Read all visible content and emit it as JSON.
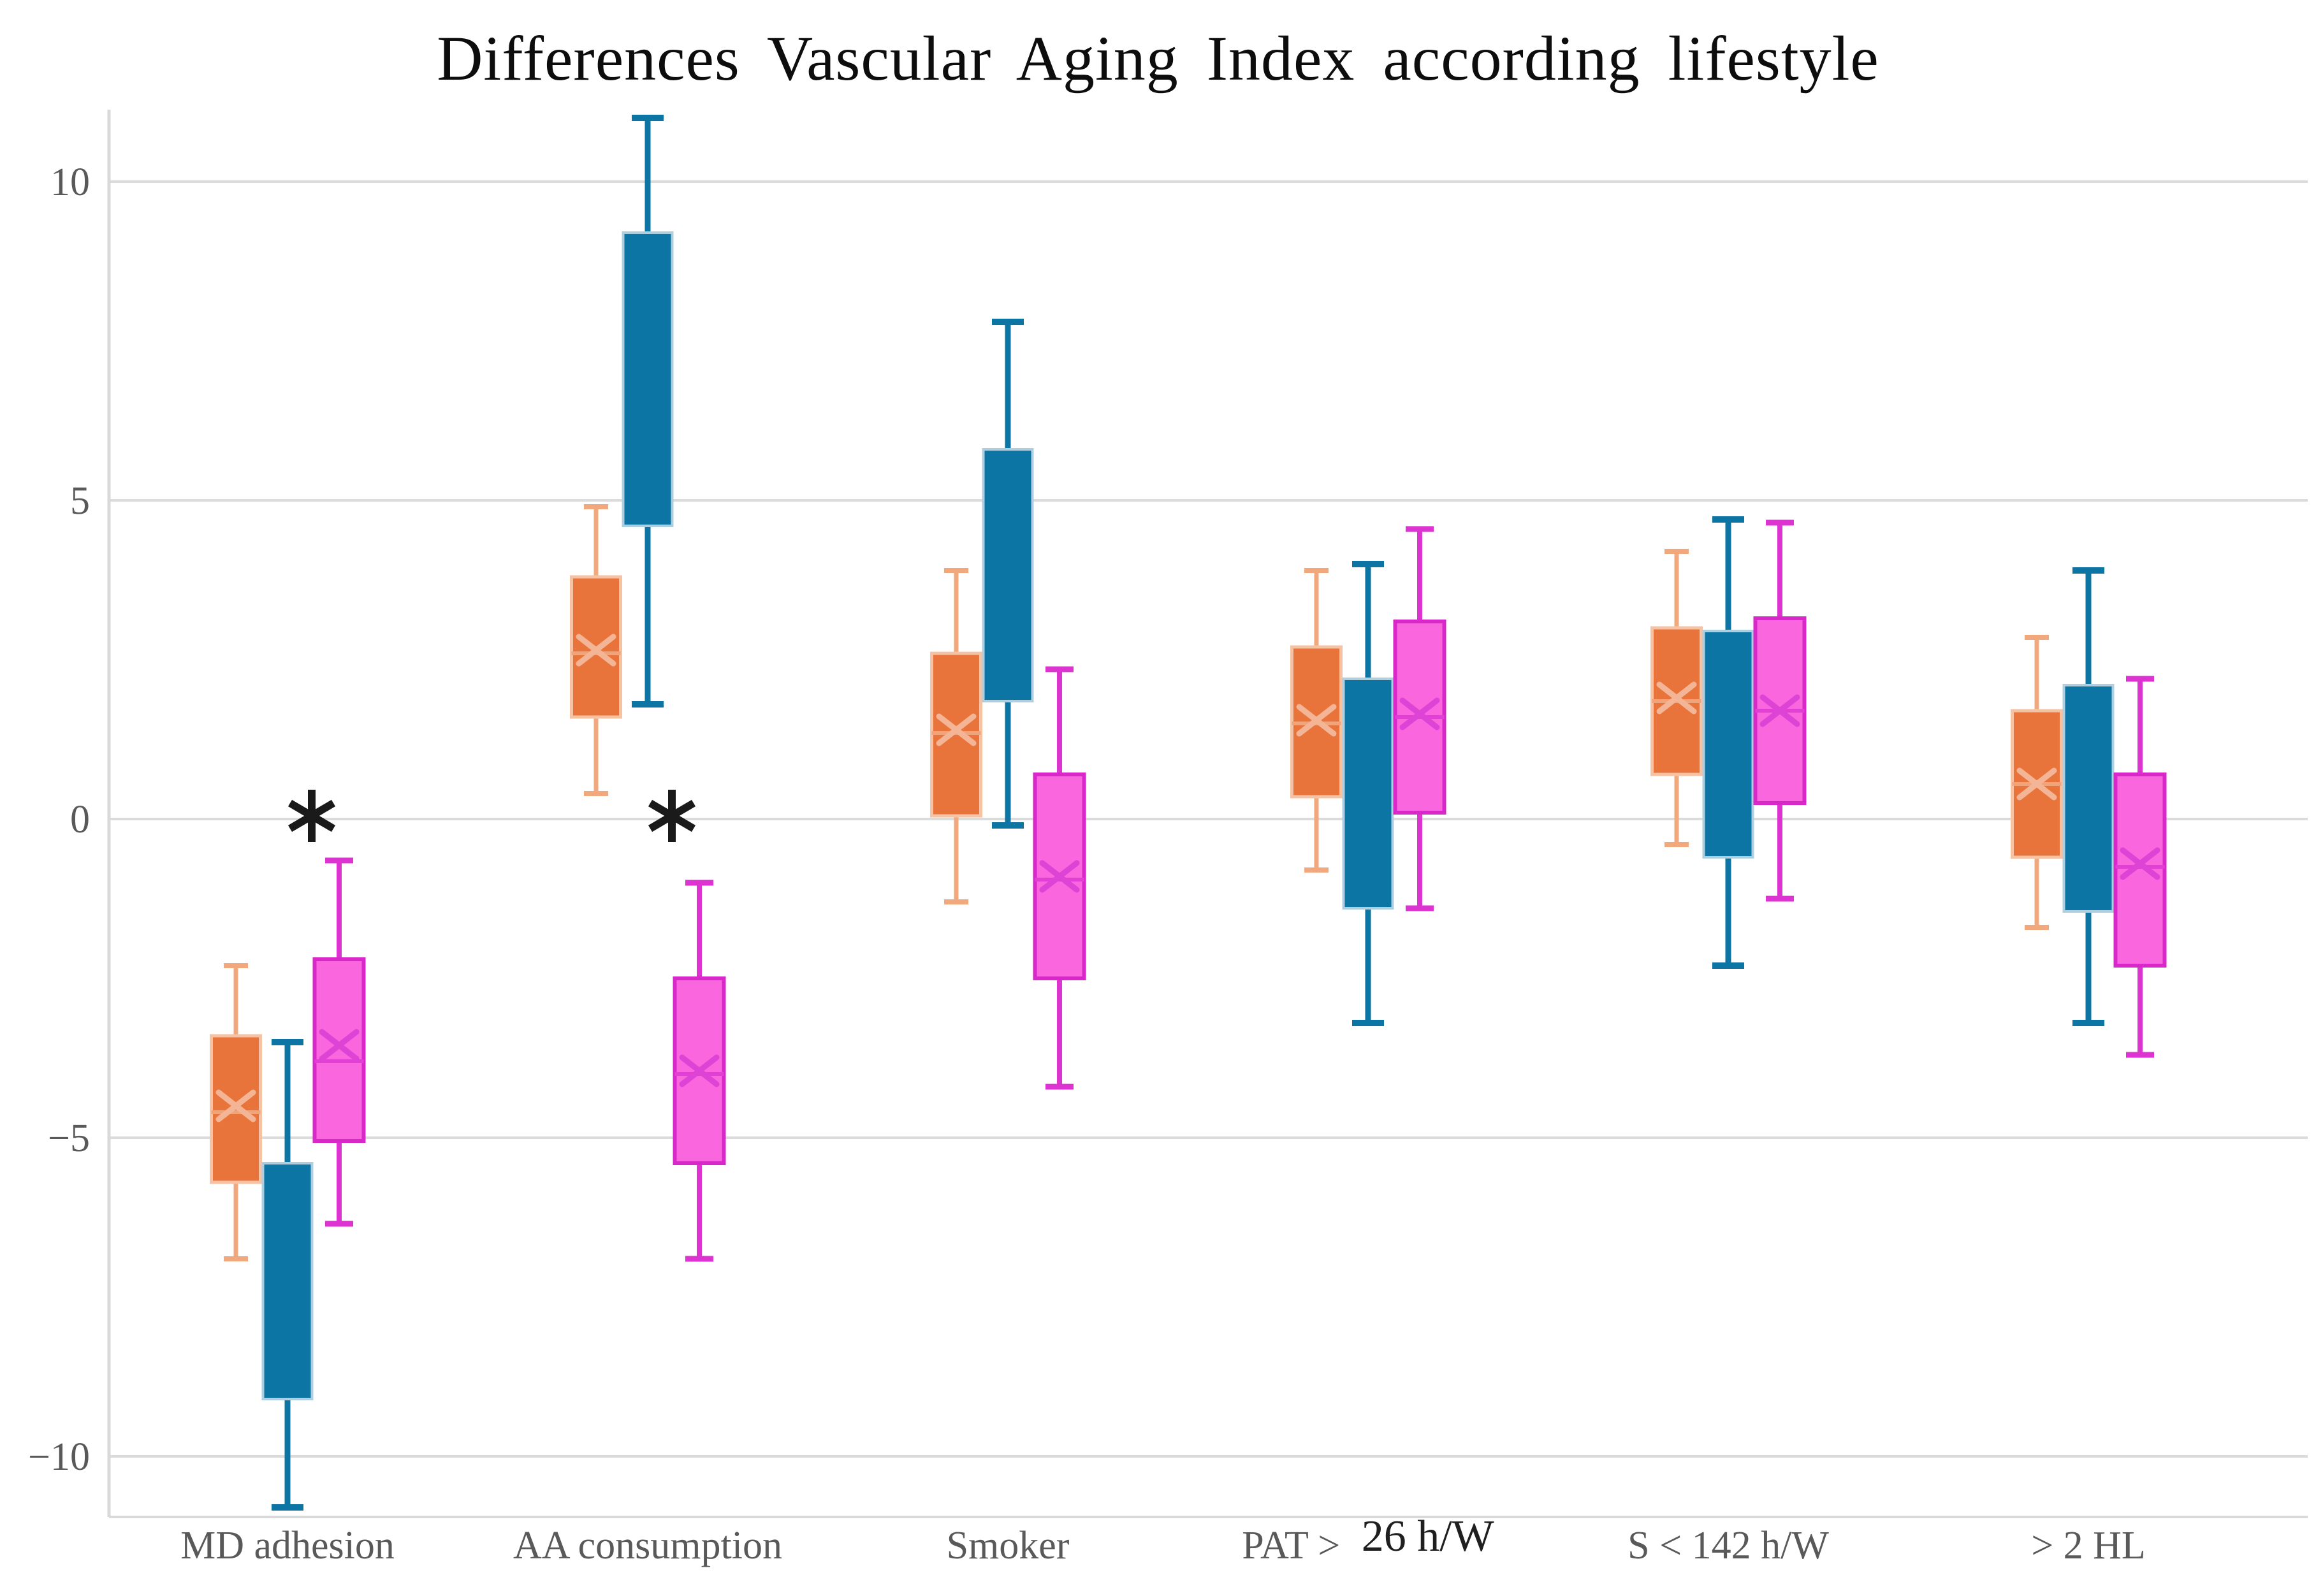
{
  "chart_data": {
    "type": "box",
    "title": "Differences Vascular Aging Index according lifestyle",
    "xlabel": "",
    "ylabel": "",
    "ylim": [
      -10.95,
      11.1
    ],
    "grid": "horizontal",
    "legend": "none",
    "yticks": [
      {
        "value": 10,
        "label": "10"
      },
      {
        "value": 5,
        "label": "5"
      },
      {
        "value": 0,
        "label": "0"
      },
      {
        "value": -5,
        "label": "−5"
      },
      {
        "value": -10,
        "label": "−10"
      }
    ],
    "categories": [
      {
        "label": "MD adhesion"
      },
      {
        "label": "AA consumption"
      },
      {
        "label": "Smoker"
      },
      {
        "label": "PAT >",
        "highlight": "26 h/W"
      },
      {
        "label": "S < 142 h/W"
      },
      {
        "label": "> 2 HL"
      }
    ],
    "series": [
      {
        "id": "orange",
        "fill": "#E8743B",
        "edge": "#F5C3A3",
        "whisker": "#F2A87D",
        "median_color": "#F0A47C",
        "mean_color": "#F4B596",
        "boxes": [
          {
            "whisker_low": -6.9,
            "q1": -5.7,
            "median": -4.6,
            "mean": -4.5,
            "q3": -3.4,
            "whisker_high": -2.3
          },
          {
            "whisker_low": 0.4,
            "q1": 1.6,
            "median": 2.6,
            "mean": 2.65,
            "q3": 3.8,
            "whisker_high": 4.9
          },
          {
            "whisker_low": -1.3,
            "q1": 0.05,
            "median": 1.35,
            "mean": 1.4,
            "q3": 2.6,
            "whisker_high": 3.9
          },
          {
            "whisker_low": -0.8,
            "q1": 0.35,
            "median": 1.5,
            "mean": 1.55,
            "q3": 2.7,
            "whisker_high": 3.9
          },
          {
            "whisker_low": -0.4,
            "q1": 0.7,
            "median": 1.85,
            "mean": 1.9,
            "q3": 3.0,
            "whisker_high": 4.2
          },
          {
            "whisker_low": -1.7,
            "q1": -0.6,
            "median": 0.55,
            "mean": 0.55,
            "q3": 1.7,
            "whisker_high": 2.85
          }
        ]
      },
      {
        "id": "blue",
        "fill": "#0C75A3",
        "edge": "#AECFE0",
        "whisker": "#0C75A3",
        "boxes": [
          {
            "whisker_low": -10.8,
            "q1": -9.1,
            "q3": -5.4,
            "whisker_high": -3.5
          },
          {
            "whisker_low": 1.8,
            "q1": 4.6,
            "q3": 9.2,
            "whisker_high": 11.0
          },
          {
            "whisker_low": -0.1,
            "q1": 1.85,
            "q3": 5.8,
            "whisker_high": 7.8
          },
          {
            "whisker_low": -3.2,
            "q1": -1.4,
            "q3": 2.2,
            "whisker_high": 4.0
          },
          {
            "whisker_low": -2.3,
            "q1": -0.6,
            "q3": 2.95,
            "whisker_high": 4.7
          },
          {
            "whisker_low": -3.2,
            "q1": -1.45,
            "q3": 2.1,
            "whisker_high": 3.9
          }
        ]
      },
      {
        "id": "pink",
        "fill": "#FA66DD",
        "edge": "#D928C9",
        "whisker": "#DD33D0",
        "median_color": "#E23FD4",
        "mean_color": "#DD44D6",
        "boxes": [
          {
            "whisker_low": -6.35,
            "q1": -5.05,
            "median": -3.8,
            "mean": -3.55,
            "q3": -2.2,
            "whisker_high": -0.65
          },
          {
            "whisker_low": -6.9,
            "q1": -5.4,
            "median": -4.0,
            "mean": -3.95,
            "q3": -2.5,
            "whisker_high": -1.0
          },
          {
            "whisker_low": -4.2,
            "q1": -2.5,
            "median": -0.95,
            "mean": -0.9,
            "q3": 0.7,
            "whisker_high": 2.35
          },
          {
            "whisker_low": -1.4,
            "q1": 0.1,
            "median": 1.6,
            "mean": 1.65,
            "q3": 3.1,
            "whisker_high": 4.55
          },
          {
            "whisker_low": -1.25,
            "q1": 0.25,
            "median": 1.7,
            "mean": 1.7,
            "q3": 3.15,
            "whisker_high": 4.65
          },
          {
            "whisker_low": -3.7,
            "q1": -2.3,
            "median": -0.75,
            "mean": -0.7,
            "q3": 0.7,
            "whisker_high": 2.2
          }
        ]
      }
    ],
    "annotations": [
      {
        "symbol": "*",
        "category_index": 0,
        "value": 0.05
      },
      {
        "symbol": "*",
        "category_index": 1,
        "value": 0.05
      }
    ],
    "style": {
      "background": "#FFFFFF",
      "gridline": "#DBDBDB",
      "spine": "#D9D9D9",
      "tick_label": "#595959",
      "category_label": "#595959",
      "category_highlight": "#1F1F1F",
      "title_color": "#0D0D0D",
      "annotation": "#1A1A1A"
    }
  }
}
